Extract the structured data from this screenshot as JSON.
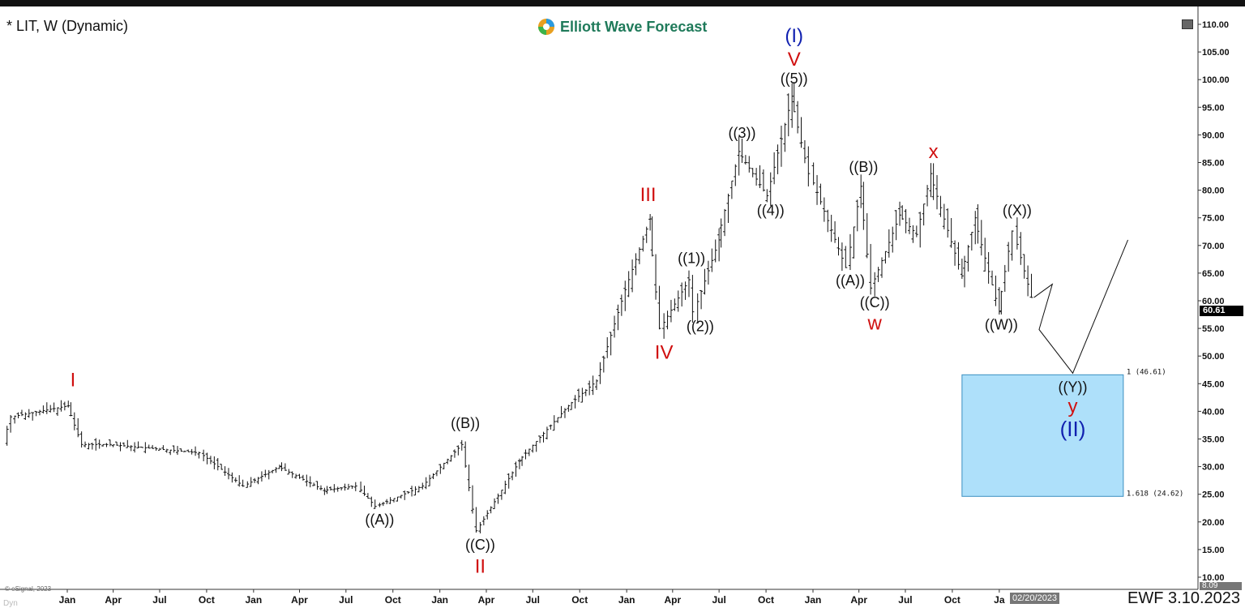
{
  "header": {
    "title": "* LIT, W (Dynamic)",
    "logo_text": "Elliott Wave Forecast"
  },
  "footer": {
    "copyright": "© eSignal, 2023",
    "dyn": "Dyn",
    "cursor_date": "02/20/2023",
    "stamp": "EWF 3.10.2023"
  },
  "price_axis": {
    "last_price": "60.61",
    "low_marker": "8.09"
  },
  "colors": {
    "red": "#d01010",
    "blue": "#1020b0",
    "black": "#111111",
    "box_fill": "#aee0fa",
    "box_stroke": "#3a8fc0",
    "logo": "#1f7a5a"
  },
  "chart_data": {
    "type": "ohlc-bar",
    "symbol": "LIT",
    "interval": "Weekly",
    "ylim": [
      10,
      110
    ],
    "yticks": [
      "110.00",
      "105.00",
      "100.00",
      "95.00",
      "90.00",
      "85.00",
      "80.00",
      "75.00",
      "70.00",
      "65.00",
      "60.00",
      "55.00",
      "50.00",
      "45.00",
      "40.00",
      "35.00",
      "30.00",
      "25.00",
      "20.00",
      "15.00",
      "10.00"
    ],
    "xticks": [
      {
        "date": "2018-01-01",
        "label": "Jan"
      },
      {
        "date": "2018-04-01",
        "label": "Apr"
      },
      {
        "date": "2018-07-01",
        "label": "Jul"
      },
      {
        "date": "2018-10-01",
        "label": "Oct"
      },
      {
        "date": "2019-01-01",
        "label": "Jan"
      },
      {
        "date": "2019-04-01",
        "label": "Apr"
      },
      {
        "date": "2019-07-01",
        "label": "Jul"
      },
      {
        "date": "2019-10-01",
        "label": "Oct"
      },
      {
        "date": "2020-01-01",
        "label": "Jan"
      },
      {
        "date": "2020-04-01",
        "label": "Apr"
      },
      {
        "date": "2020-07-01",
        "label": "Jul"
      },
      {
        "date": "2020-10-01",
        "label": "Oct"
      },
      {
        "date": "2021-01-01",
        "label": "Jan"
      },
      {
        "date": "2021-04-01",
        "label": "Apr"
      },
      {
        "date": "2021-07-01",
        "label": "Jul"
      },
      {
        "date": "2021-10-01",
        "label": "Oct"
      },
      {
        "date": "2022-01-01",
        "label": "Jan"
      },
      {
        "date": "2022-04-01",
        "label": "Apr"
      },
      {
        "date": "2022-07-01",
        "label": "Jul"
      },
      {
        "date": "2022-10-01",
        "label": "Oct"
      },
      {
        "date": "2023-01-01",
        "label": "Ja"
      }
    ],
    "swings": [
      [
        "2017-09-05",
        34.5
      ],
      [
        "2017-09-20",
        39
      ],
      [
        "2018-01-08",
        41
      ],
      [
        "2018-02-05",
        34
      ],
      [
        "2018-04-01",
        34
      ],
      [
        "2018-09-25",
        32.5
      ],
      [
        "2018-12-20",
        26.5
      ],
      [
        "2019-02-25",
        30
      ],
      [
        "2019-05-25",
        25.7
      ],
      [
        "2019-07-30",
        26.5
      ],
      [
        "2019-09-05",
        22.8
      ],
      [
        "2019-12-05",
        26.5
      ],
      [
        "2020-02-20",
        34
      ],
      [
        "2020-03-20",
        18.4
      ],
      [
        "2020-06-10",
        31
      ],
      [
        "2020-09-15",
        41
      ],
      [
        "2020-11-10",
        45.5
      ],
      [
        "2021-01-05",
        62
      ],
      [
        "2021-02-20",
        74.8
      ],
      [
        "2021-03-15",
        55
      ],
      [
        "2021-05-10",
        63.8
      ],
      [
        "2021-05-20",
        58
      ],
      [
        "2021-07-05",
        71
      ],
      [
        "2021-08-15",
        87
      ],
      [
        "2021-10-10",
        79
      ],
      [
        "2021-11-25",
        97
      ],
      [
        "2022-01-02",
        83
      ],
      [
        "2022-03-15",
        66
      ],
      [
        "2022-04-10",
        80.7
      ],
      [
        "2022-05-02",
        62.3
      ],
      [
        "2022-06-25",
        75.5
      ],
      [
        "2022-07-30",
        72
      ],
      [
        "2022-08-25",
        83
      ],
      [
        "2022-10-25",
        64.5
      ],
      [
        "2022-11-20",
        75
      ],
      [
        "2023-01-05",
        58
      ],
      [
        "2023-02-05",
        72.6
      ],
      [
        "2023-03-10",
        60.6
      ]
    ],
    "projection": [
      [
        "2023-03-10",
        60.6
      ],
      [
        "2023-04-15",
        63
      ],
      [
        "2023-03-20",
        54.8
      ],
      [
        "2023-05-25",
        46.9
      ],
      [
        "2023-09-10",
        71
      ]
    ],
    "target_box": {
      "start": "2022-10-20",
      "end": "2023-09-01",
      "upper": 46.61,
      "lower": 24.62,
      "upper_label": "1 (46.61)",
      "lower_label": "1.618 (24.62)"
    },
    "wave_labels": [
      {
        "text": "I",
        "date": "2018-01-12",
        "price": 44.5,
        "color": "red",
        "size": 24
      },
      {
        "text": "((A))",
        "date": "2019-09-05",
        "price": 19.5,
        "color": "black",
        "size": 18
      },
      {
        "text": "((B))",
        "date": "2020-02-20",
        "price": 37,
        "color": "black",
        "size": 18
      },
      {
        "text": "((C))",
        "date": "2020-03-20",
        "price": 15,
        "color": "black",
        "size": 18
      },
      {
        "text": "II",
        "date": "2020-03-20",
        "price": 10.8,
        "color": "red",
        "size": 24
      },
      {
        "text": "III",
        "date": "2021-02-12",
        "price": 78,
        "color": "red",
        "size": 24
      },
      {
        "text": "IV",
        "date": "2021-03-15",
        "price": 49.5,
        "color": "red",
        "size": 24
      },
      {
        "text": "((1))",
        "date": "2021-05-08",
        "price": 66.8,
        "color": "black",
        "size": 18
      },
      {
        "text": "((2))",
        "date": "2021-05-25",
        "price": 54.5,
        "color": "black",
        "size": 18
      },
      {
        "text": "((3))",
        "date": "2021-08-15",
        "price": 89.5,
        "color": "black",
        "size": 18
      },
      {
        "text": "((4))",
        "date": "2021-10-10",
        "price": 75.5,
        "color": "black",
        "size": 18
      },
      {
        "text": "((5))",
        "date": "2021-11-25",
        "price": 99.3,
        "color": "black",
        "size": 18
      },
      {
        "text": "V",
        "date": "2021-11-25",
        "price": 102.5,
        "color": "red",
        "size": 24
      },
      {
        "text": "(I)",
        "date": "2021-11-25",
        "price": 106.8,
        "color": "blue",
        "size": 24
      },
      {
        "text": "((A))",
        "date": "2022-03-15",
        "price": 62.8,
        "color": "black",
        "size": 18
      },
      {
        "text": "((B))",
        "date": "2022-04-10",
        "price": 83.3,
        "color": "black",
        "size": 18
      },
      {
        "text": "((C))",
        "date": "2022-05-02",
        "price": 58.8,
        "color": "black",
        "size": 18
      },
      {
        "text": "w",
        "date": "2022-05-02",
        "price": 54.8,
        "color": "red",
        "size": 24
      },
      {
        "text": "x",
        "date": "2022-08-25",
        "price": 85.8,
        "color": "red",
        "size": 24
      },
      {
        "text": "((W))",
        "date": "2023-01-05",
        "price": 54.8,
        "color": "black",
        "size": 18
      },
      {
        "text": "((X))",
        "date": "2023-02-05",
        "price": 75.5,
        "color": "black",
        "size": 18
      },
      {
        "text": "((Y))",
        "date": "2023-05-25",
        "price": 43.5,
        "color": "black",
        "size": 18
      },
      {
        "text": "y",
        "date": "2023-05-25",
        "price": 39.8,
        "color": "red",
        "size": 24
      },
      {
        "text": "(II)",
        "date": "2023-05-25",
        "price": 35.5,
        "color": "blue",
        "size": 26
      }
    ]
  }
}
